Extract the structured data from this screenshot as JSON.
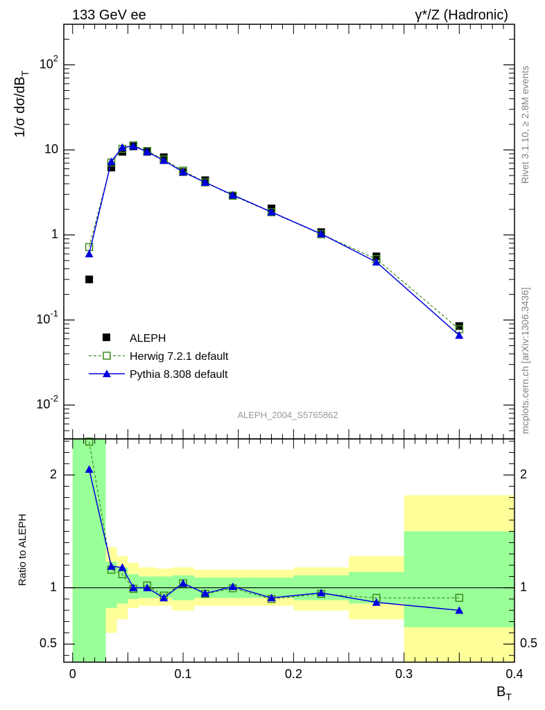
{
  "header": {
    "left": "133 GeV ee",
    "right_prefix": "γ*/Z",
    "right_suffix": " (Hadronic)"
  },
  "side_labels": {
    "rivet": "Rivet 3.1.10, ≥ 2.8M events",
    "mcplots": "mcplots.cern.ch [arXiv:1306.3436]"
  },
  "analysis_id": "ALEPH_2004_S5765862",
  "colors": {
    "data": "#000000",
    "herwig": "#3a8a1a",
    "pythia": "#0000dd",
    "band_inner": "#99ff99",
    "band_outer": "#ffff99"
  },
  "chart_data": [
    {
      "type": "line",
      "panel": "main",
      "ylabel": "1/σ dσ/dB_T",
      "yscale": "log",
      "ylim": [
        0.004,
        300
      ],
      "xlim": [
        -0.008,
        0.4
      ],
      "yticklabels": [
        "10^-2",
        "10^-1",
        "1",
        "10",
        "10^2"
      ],
      "legend_position": "bottom-left",
      "x": [
        0.015,
        0.035,
        0.045,
        0.055,
        0.0675,
        0.0825,
        0.1,
        0.12,
        0.145,
        0.18,
        0.225,
        0.275,
        0.35
      ],
      "series": [
        {
          "name": "ALEPH",
          "style": "markers",
          "marker": "square",
          "values": [
            0.3,
            6.2,
            9.5,
            11.0,
            9.5,
            8.2,
            5.5,
            4.4,
            2.9,
            2.05,
            1.08,
            0.56,
            0.085
          ]
        },
        {
          "name": "Herwig 7.2.1 default",
          "style": "dashed",
          "marker": "open-square",
          "values": [
            0.72,
            7.1,
            10.3,
            11.3,
            9.7,
            7.7,
            5.7,
            4.15,
            2.9,
            1.85,
            1.02,
            0.52,
            0.078
          ]
        },
        {
          "name": "Pythia 8.308 default",
          "style": "solid",
          "marker": "triangle",
          "values": [
            0.6,
            7.3,
            10.7,
            11.1,
            9.5,
            7.5,
            5.5,
            4.15,
            2.95,
            1.86,
            1.03,
            0.48,
            0.066
          ]
        }
      ]
    },
    {
      "type": "line",
      "panel": "ratio",
      "xlabel": "B_T",
      "ylabel": "Ratio to ALEPH",
      "ylim": [
        0.34,
        2.32
      ],
      "xlim": [
        -0.008,
        0.4
      ],
      "yticklabels": [
        "0.5",
        "1",
        "2"
      ],
      "xticklabels": [
        "0",
        "0.1",
        "0.2",
        "0.3",
        "0.4"
      ],
      "x": [
        0.015,
        0.035,
        0.045,
        0.055,
        0.0675,
        0.0825,
        0.1,
        0.12,
        0.145,
        0.18,
        0.225,
        0.275,
        0.35
      ],
      "series": [
        {
          "name": "Herwig 7.2.1 default",
          "style": "dashed",
          "marker": "open-square",
          "values": [
            2.45,
            1.16,
            1.12,
            0.99,
            1.02,
            0.93,
            1.04,
            0.945,
            0.995,
            0.9,
            0.945,
            0.91,
            0.91
          ]
        },
        {
          "name": "Pythia 8.308 default",
          "style": "solid",
          "marker": "triangle",
          "values": [
            2.05,
            1.19,
            1.18,
            1.0,
            1.0,
            0.91,
            1.04,
            0.95,
            1.01,
            0.91,
            0.955,
            0.87,
            0.8
          ]
        }
      ],
      "uncertainty_bins": [
        {
          "x0": 0.0,
          "x1": 0.03,
          "inner": [
            0.34,
            2.32
          ],
          "outer": [
            0.34,
            2.32
          ]
        },
        {
          "x0": 0.03,
          "x1": 0.04,
          "inner": [
            0.82,
            1.23
          ],
          "outer": [
            0.6,
            1.36
          ]
        },
        {
          "x0": 0.04,
          "x1": 0.05,
          "inner": [
            0.86,
            1.18
          ],
          "outer": [
            0.72,
            1.28
          ]
        },
        {
          "x0": 0.05,
          "x1": 0.06,
          "inner": [
            0.9,
            1.12
          ],
          "outer": [
            0.82,
            1.22
          ]
        },
        {
          "x0": 0.06,
          "x1": 0.075,
          "inner": [
            0.91,
            1.1
          ],
          "outer": [
            0.84,
            1.18
          ]
        },
        {
          "x0": 0.075,
          "x1": 0.09,
          "inner": [
            0.91,
            1.1
          ],
          "outer": [
            0.84,
            1.17
          ]
        },
        {
          "x0": 0.09,
          "x1": 0.11,
          "inner": [
            0.89,
            1.11
          ],
          "outer": [
            0.8,
            1.18
          ]
        },
        {
          "x0": 0.11,
          "x1": 0.13,
          "inner": [
            0.91,
            1.09
          ],
          "outer": [
            0.84,
            1.16
          ]
        },
        {
          "x0": 0.13,
          "x1": 0.16,
          "inner": [
            0.91,
            1.09
          ],
          "outer": [
            0.84,
            1.16
          ]
        },
        {
          "x0": 0.16,
          "x1": 0.2,
          "inner": [
            0.91,
            1.09
          ],
          "outer": [
            0.84,
            1.16
          ]
        },
        {
          "x0": 0.2,
          "x1": 0.25,
          "inner": [
            0.89,
            1.11
          ],
          "outer": [
            0.8,
            1.18
          ]
        },
        {
          "x0": 0.25,
          "x1": 0.3,
          "inner": [
            0.86,
            1.14
          ],
          "outer": [
            0.72,
            1.28
          ]
        },
        {
          "x0": 0.3,
          "x1": 0.4,
          "inner": [
            0.65,
            1.5
          ],
          "outer": [
            0.34,
            1.82
          ]
        }
      ]
    }
  ]
}
